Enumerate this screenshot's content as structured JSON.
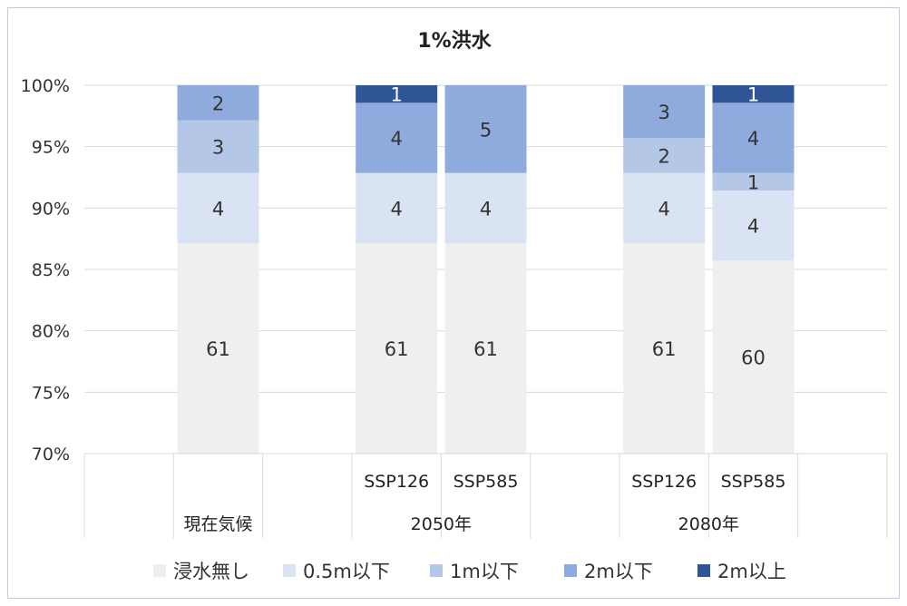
{
  "chart_data": {
    "type": "bar",
    "stacked": "percent",
    "title": "1%洪水",
    "ylim": [
      70,
      100
    ],
    "yticks": [
      "70%",
      "75%",
      "80%",
      "85%",
      "90%",
      "95%",
      "100%"
    ],
    "ytick_values": [
      70,
      75,
      80,
      85,
      90,
      95,
      100
    ],
    "legend_position": "bottom",
    "grid": true,
    "groups": [
      {
        "label": "現在気候",
        "categories": [
          ""
        ]
      },
      {
        "label": "2050年",
        "categories": [
          "SSP126",
          "SSP585"
        ]
      },
      {
        "label": "2080年",
        "categories": [
          "SSP126",
          "SSP585"
        ]
      }
    ],
    "categories": [
      "現在気候",
      "2050年 SSP126",
      "2050年 SSP585",
      "2080年 SSP126",
      "2080年 SSP585"
    ],
    "series": [
      {
        "name": "浸水無し",
        "color": "#efefef",
        "values": [
          61,
          61,
          61,
          61,
          60
        ]
      },
      {
        "name": "0.5m以下",
        "color": "#dae3f3",
        "values": [
          4,
          4,
          4,
          4,
          4
        ]
      },
      {
        "name": "1m以下",
        "color": "#b4c7e7",
        "values": [
          3,
          0,
          0,
          2,
          1
        ]
      },
      {
        "name": "2m以下",
        "color": "#8faadc",
        "values": [
          2,
          4,
          5,
          3,
          4
        ]
      },
      {
        "name": "2m以上",
        "color": "#2f5597",
        "values": [
          0,
          1,
          0,
          0,
          1
        ]
      }
    ]
  }
}
